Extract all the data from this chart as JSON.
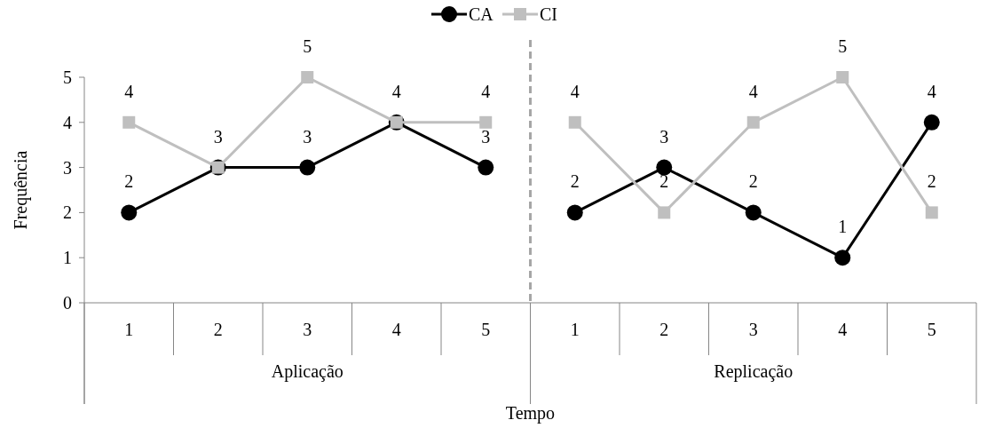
{
  "chart_data": {
    "type": "line",
    "xlabel": "Tempo",
    "ylabel": "Frequência",
    "categories": [
      "1",
      "2",
      "3",
      "4",
      "5",
      "1",
      "2",
      "3",
      "4",
      "5"
    ],
    "annotations": [
      "Aplicação",
      "Replicação"
    ],
    "series": [
      {
        "name": "CA",
        "color": "#000000",
        "marker": "circle",
        "values": [
          2,
          3,
          3,
          4,
          3,
          2,
          3,
          2,
          1,
          4
        ]
      },
      {
        "name": "CI",
        "color": "#bfbfbf",
        "marker": "square",
        "values": [
          4,
          3,
          5,
          4,
          4,
          4,
          2,
          4,
          5,
          2
        ],
        "value_labels": [
          "4",
          null,
          "5",
          null,
          "4",
          "4",
          "2",
          "4",
          "5",
          "2"
        ]
      }
    ],
    "ylim": [
      0,
      5
    ],
    "yticks": [
      0,
      1,
      2,
      3,
      4,
      5
    ],
    "grid": false,
    "legend": "top",
    "data_labels": true
  }
}
